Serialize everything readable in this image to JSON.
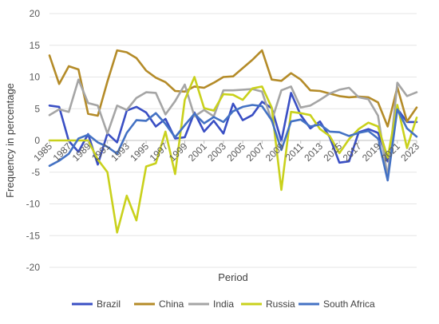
{
  "chart_data": {
    "type": "line",
    "title": "",
    "xlabel": "Period",
    "ylabel": "Frequency in percentage",
    "ylim": [
      -20,
      20
    ],
    "y_ticks": [
      20,
      15,
      10,
      5,
      0,
      -5,
      -10,
      -15,
      -20
    ],
    "x": [
      1985,
      1986,
      1987,
      1988,
      1989,
      1990,
      1991,
      1992,
      1993,
      1994,
      1995,
      1996,
      1997,
      1998,
      1999,
      2000,
      2001,
      2002,
      2003,
      2004,
      2005,
      2006,
      2007,
      2008,
      2009,
      2010,
      2011,
      2012,
      2013,
      2014,
      2015,
      2016,
      2017,
      2018,
      2019,
      2020,
      2021,
      2022,
      2023
    ],
    "x_tick_labels": [
      "1985",
      "1987",
      "1989",
      "1991",
      "1993",
      "1995",
      "1997",
      "1999",
      "2001",
      "2003",
      "2005",
      "2007",
      "2009",
      "2011",
      "2013",
      "2015",
      "2017",
      "2019",
      "2021",
      "2023"
    ],
    "grid": "horizontal",
    "legend_position": "bottom",
    "series": [
      {
        "name": "Brazil",
        "color": "#3a4fc4",
        "values": [
          5.5,
          5.3,
          -0.1,
          -1.8,
          1.0,
          -3.8,
          1.1,
          -0.3,
          4.7,
          5.3,
          4.4,
          2.2,
          3.4,
          0.3,
          0.5,
          4.4,
          1.4,
          3.1,
          1.1,
          5.8,
          3.2,
          4.0,
          6.1,
          5.1,
          -0.1,
          7.5,
          4.0,
          1.9,
          3.0,
          0.5,
          -3.5,
          -3.3,
          1.3,
          1.8,
          1.2,
          -3.3,
          5.0,
          2.9,
          2.9
        ]
      },
      {
        "name": "China",
        "color": "#b48b28",
        "values": [
          13.4,
          8.9,
          11.7,
          11.2,
          4.2,
          3.9,
          9.3,
          14.2,
          13.9,
          13.0,
          11.0,
          9.9,
          9.2,
          7.8,
          7.7,
          8.5,
          8.3,
          9.1,
          10.0,
          10.1,
          11.4,
          12.7,
          14.2,
          9.6,
          9.4,
          10.6,
          9.6,
          7.9,
          7.8,
          7.4,
          7.0,
          6.8,
          6.9,
          6.8,
          6.0,
          2.2,
          8.4,
          3.0,
          5.2
        ]
      },
      {
        "name": "India",
        "color": "#a5a5a5",
        "values": [
          4.0,
          4.9,
          4.5,
          9.6,
          5.9,
          5.5,
          1.1,
          5.5,
          4.8,
          6.7,
          7.6,
          7.5,
          4.1,
          6.2,
          8.8,
          3.8,
          4.8,
          3.8,
          7.9,
          7.9,
          8.0,
          8.1,
          7.7,
          3.1,
          7.9,
          8.5,
          5.2,
          5.5,
          6.4,
          7.4,
          8.0,
          8.3,
          6.8,
          6.5,
          3.9,
          -5.8,
          9.1,
          7.0,
          7.6
        ]
      },
      {
        "name": "Russia",
        "color": "#c9d11c",
        "values": [
          0.0,
          0.0,
          0.0,
          0.0,
          0.0,
          -3.0,
          -5.0,
          -14.5,
          -8.7,
          -12.6,
          -4.1,
          -3.6,
          1.4,
          -5.3,
          6.4,
          10.0,
          5.1,
          4.7,
          7.3,
          7.2,
          6.4,
          8.2,
          8.5,
          5.2,
          -7.8,
          4.5,
          4.3,
          4.0,
          1.8,
          0.7,
          -2.0,
          0.2,
          1.8,
          2.8,
          2.2,
          -2.7,
          5.6,
          -1.2,
          3.6
        ]
      },
      {
        "name": "South Africa",
        "color": "#4472c4",
        "values": [
          -4.0,
          -3.2,
          -2.1,
          0.3,
          0.9,
          -0.3,
          -1.0,
          -2.1,
          1.2,
          3.2,
          3.1,
          4.3,
          2.6,
          0.5,
          2.4,
          4.2,
          2.7,
          3.7,
          2.9,
          4.6,
          5.3,
          5.6,
          5.4,
          3.2,
          -1.5,
          3.0,
          3.3,
          2.2,
          2.5,
          1.4,
          1.3,
          0.7,
          1.2,
          1.5,
          0.3,
          -6.3,
          4.9,
          1.9,
          0.6
        ]
      }
    ]
  }
}
